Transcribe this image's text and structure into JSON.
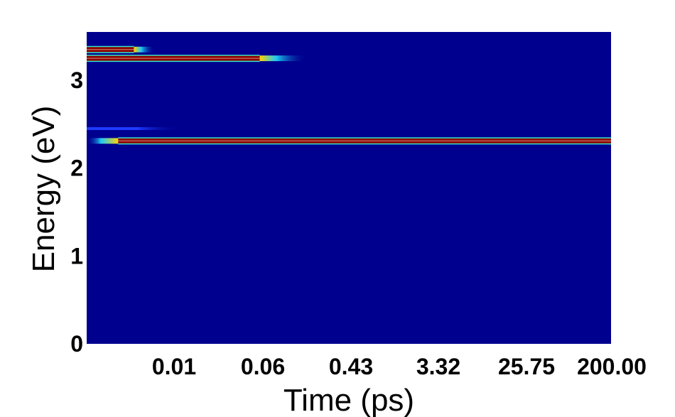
{
  "chart_data": {
    "type": "heatmap",
    "title": "",
    "xlabel": "Time (ps)",
    "ylabel": "Energy (eV)",
    "x_scale": "log",
    "x_ticks": [
      "0.01",
      "0.06",
      "0.43",
      "3.32",
      "25.75",
      "200.00"
    ],
    "y_ticks": [
      "0",
      "1",
      "2",
      "3"
    ],
    "ylim": [
      0,
      3.55
    ],
    "colormap": "jet",
    "background_color": "#00008f",
    "bands": [
      {
        "energy": 3.35,
        "x_start": 0.0,
        "x_end": 0.09,
        "fade_end": 0.13,
        "strength": "high"
      },
      {
        "energy": 3.25,
        "x_start": 0.0,
        "x_end": 0.33,
        "fade_end": 0.42,
        "strength": "high"
      },
      {
        "energy": 2.45,
        "x_start": 0.0,
        "x_end": 0.1,
        "fade_end": 0.18,
        "strength": "faint"
      },
      {
        "energy": 2.31,
        "x_start": 0.06,
        "x_end": 1.0,
        "fade_end": 1.0,
        "strength": "high"
      }
    ]
  }
}
